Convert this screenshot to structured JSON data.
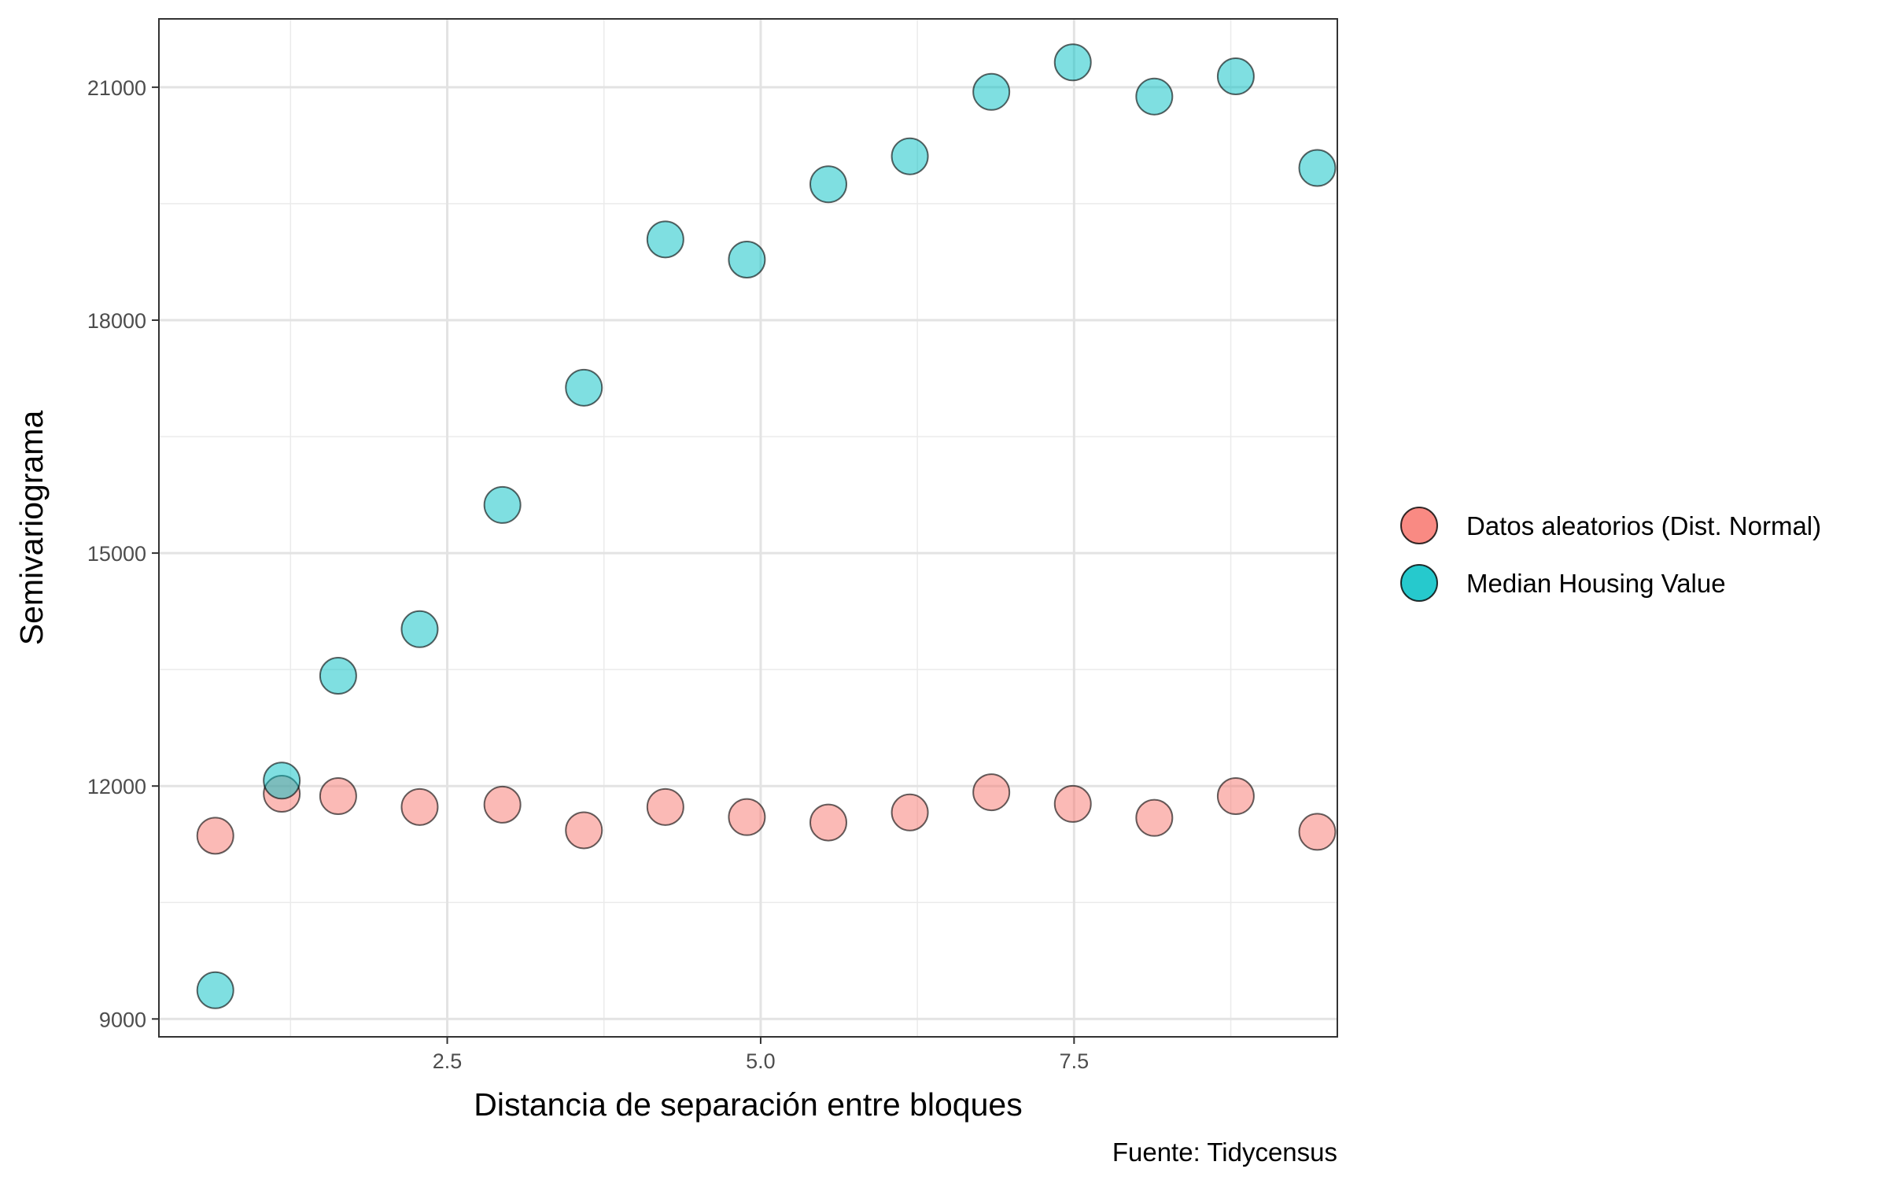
{
  "chart_data": {
    "type": "scatter",
    "title": "",
    "xlabel": "Distancia de separación entre bloques",
    "ylabel": "Semivariograma",
    "caption": "Fuente: Tidycensus",
    "xlim": [
      0.2,
      9.6
    ],
    "ylim": [
      8770,
      21880
    ],
    "x_ticks": [
      2.5,
      5.0,
      7.5
    ],
    "x_tick_labels": [
      "2.5",
      "5.0",
      "7.5"
    ],
    "x_minor_ticks": [
      1.25,
      3.75,
      6.25,
      8.75
    ],
    "y_ticks": [
      9000,
      12000,
      15000,
      18000,
      21000
    ],
    "y_tick_labels": [
      "9000",
      "12000",
      "15000",
      "18000",
      "21000"
    ],
    "y_minor_ticks": [
      10500,
      13500,
      16500,
      19500
    ],
    "grid": true,
    "legend_position": "right",
    "series": [
      {
        "name": "Datos aleatorios (Dist. Normal)",
        "color": "#F8766D",
        "x": [
          0.65,
          1.18,
          1.63,
          2.28,
          2.94,
          3.59,
          4.24,
          4.89,
          5.54,
          6.19,
          6.84,
          7.49,
          8.14,
          8.79,
          9.44
        ],
        "y": [
          11360,
          11900,
          11870,
          11730,
          11760,
          11430,
          11730,
          11600,
          11530,
          11660,
          11920,
          11770,
          11590,
          11870,
          11410
        ]
      },
      {
        "name": "Median Housing Value",
        "color": "#00BFC4",
        "x": [
          0.65,
          1.18,
          1.63,
          2.28,
          2.94,
          3.59,
          4.24,
          4.89,
          5.54,
          6.19,
          6.84,
          7.49,
          8.14,
          8.79,
          9.44
        ],
        "y": [
          9370,
          12070,
          13420,
          14020,
          15620,
          17130,
          19040,
          18780,
          19750,
          20110,
          20940,
          21320,
          20880,
          21140,
          19960
        ]
      }
    ]
  }
}
